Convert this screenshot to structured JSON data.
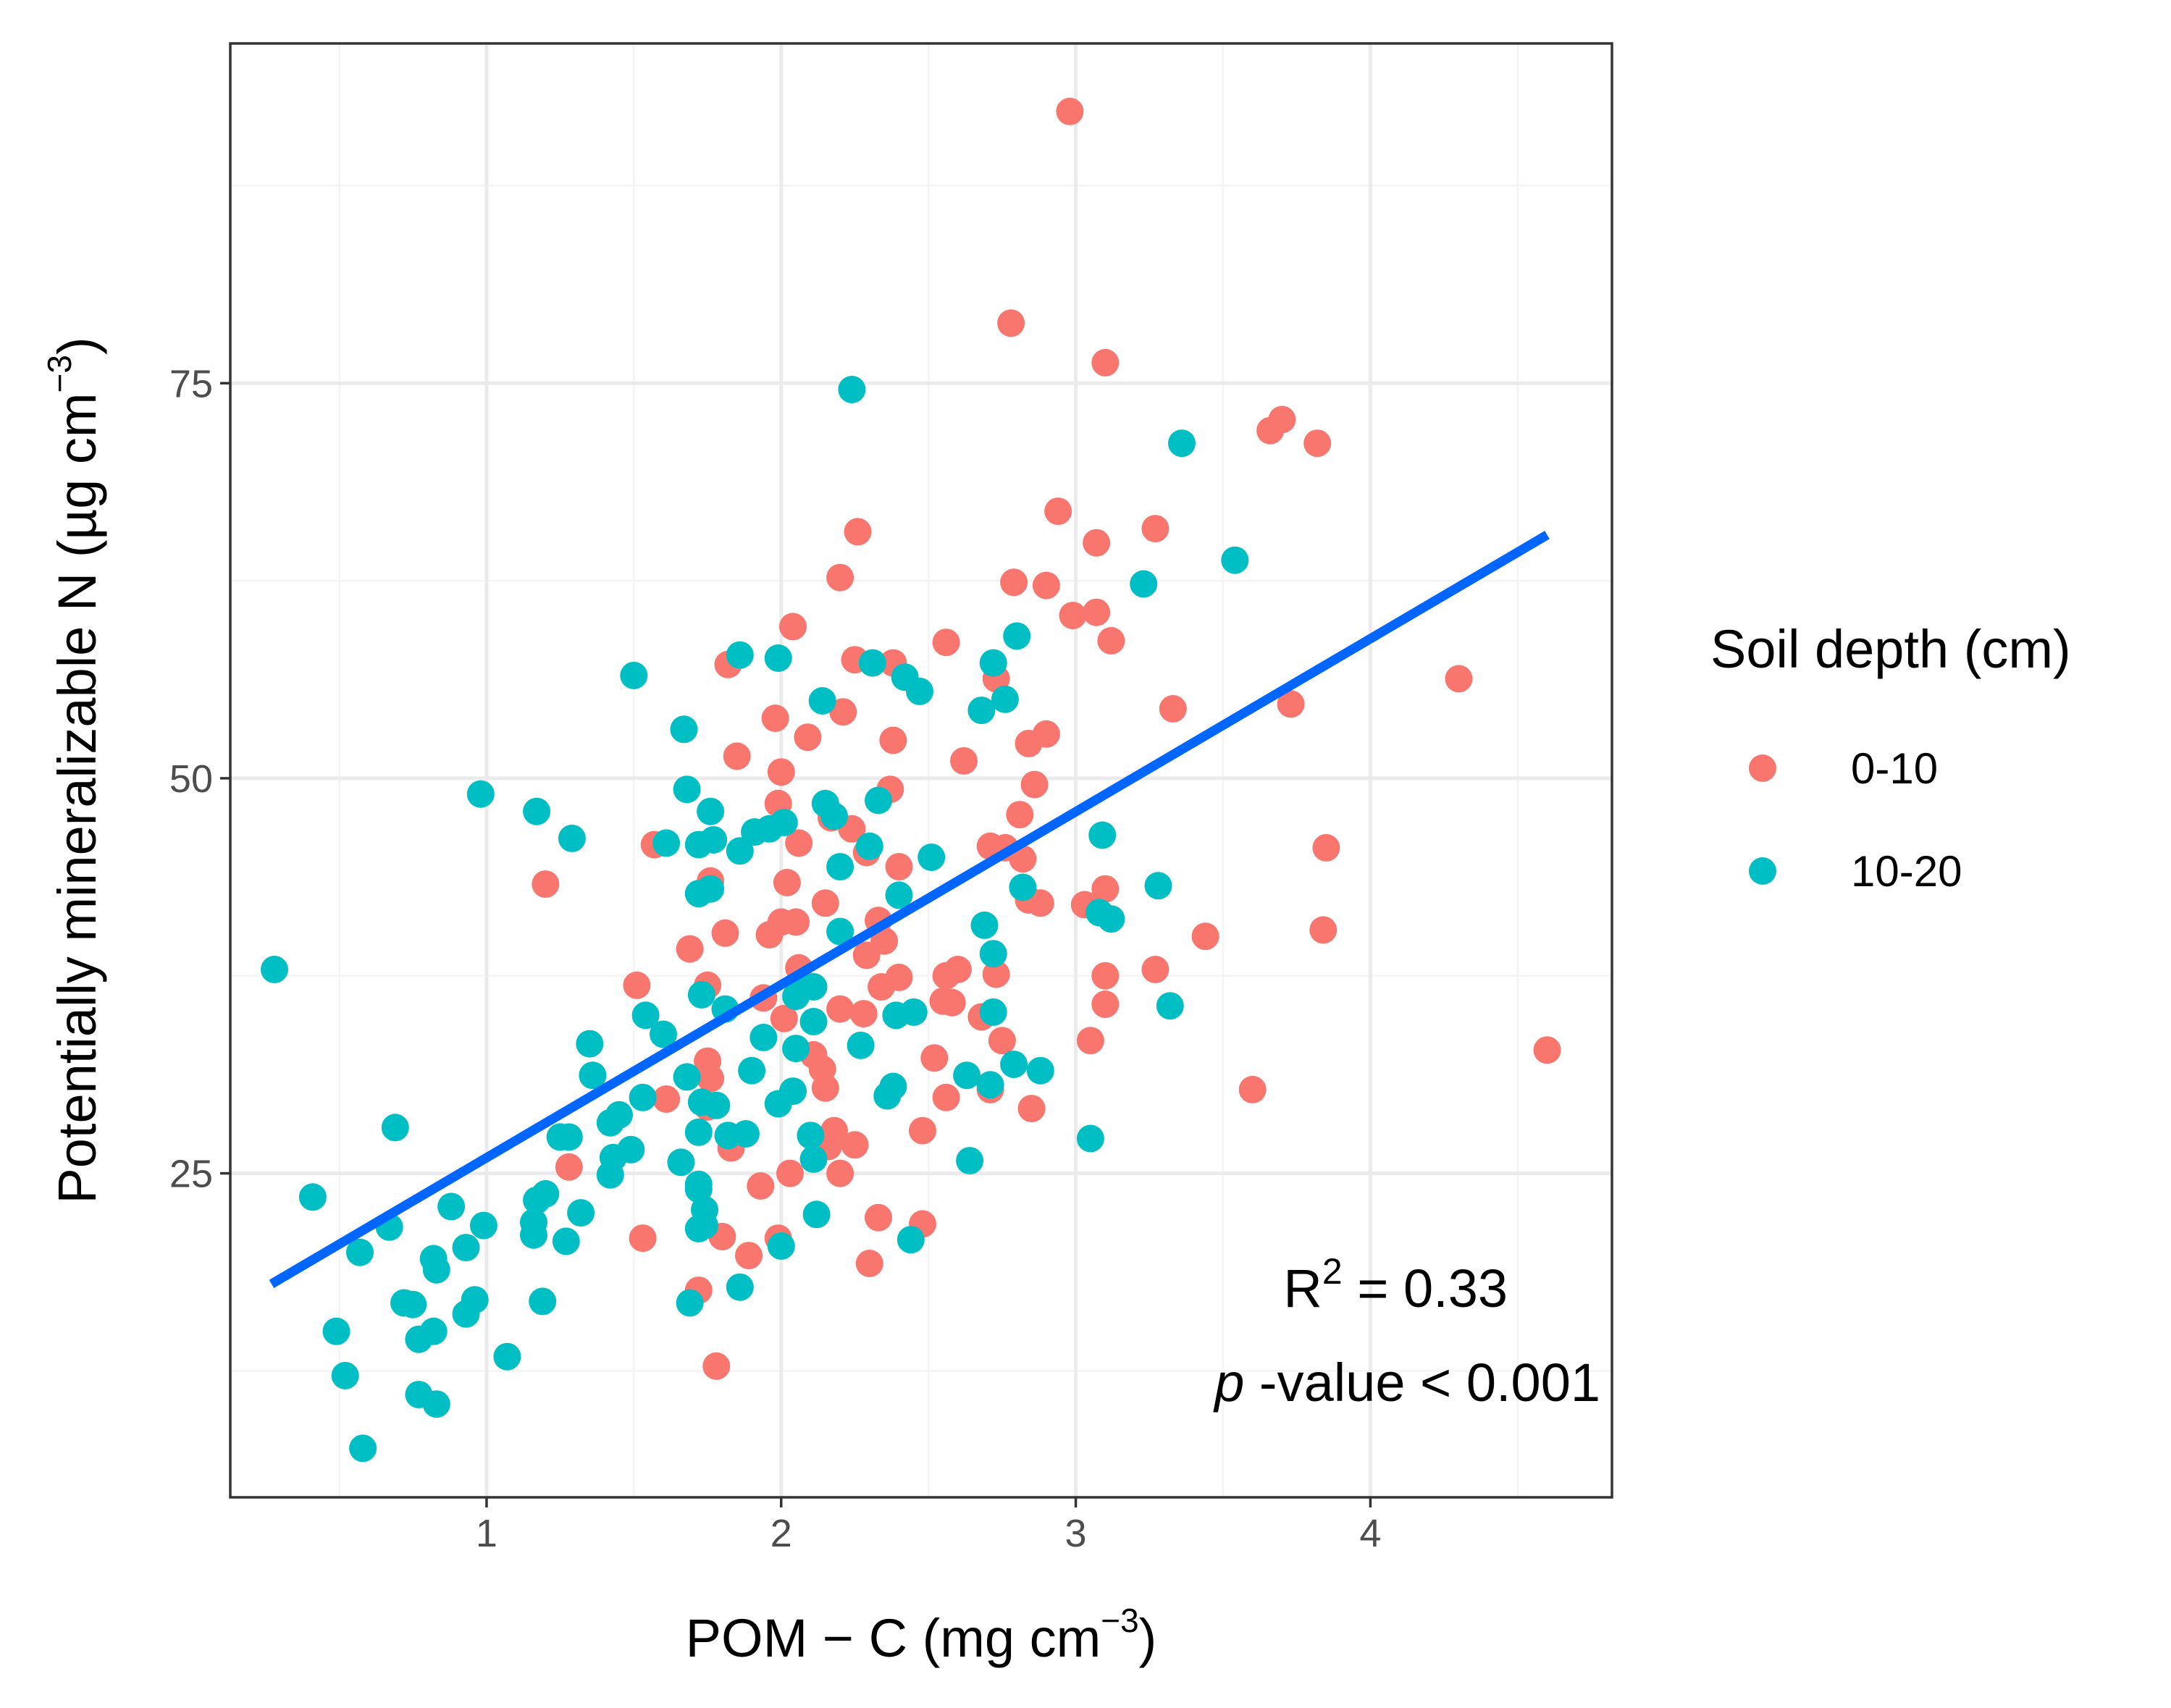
{
  "chart_data": {
    "type": "scatter",
    "title": "",
    "xlabel": {
      "main": "POM − C (mg cm",
      "sup": "−3",
      "close": ")"
    },
    "ylabel": {
      "main": "Potentially mineralizable N (µg cm",
      "sup": "−3",
      "close": ")"
    },
    "xlim": [
      0.13,
      4.82
    ],
    "ylim": [
      4.5,
      96.5
    ],
    "x_ticks": [
      1,
      2,
      3,
      4
    ],
    "y_ticks": [
      25,
      50,
      75
    ],
    "x_tick_labels": [
      "1",
      "2",
      "3",
      "4"
    ],
    "y_tick_labels": [
      "25",
      "50",
      "75"
    ],
    "grid": true,
    "legend": {
      "title": "Soil depth (cm)",
      "position": "right",
      "entries": [
        {
          "label": "0-10",
          "color": "#F8766D"
        },
        {
          "label": "10-20",
          "color": "#00BFC4"
        }
      ]
    },
    "fit_line": {
      "color": "#0066FF",
      "x": [
        0.27,
        4.6
      ],
      "y": [
        18.0,
        65.4
      ]
    },
    "annotations": {
      "r2": {
        "prefix": "R",
        "sup": "2",
        "rest": " = 0.33"
      },
      "pvalue": {
        "italic": "p",
        "rest": " -value < 0.001"
      }
    },
    "series": [
      {
        "name": "0-10",
        "color": "#F8766D",
        "points": [
          [
            2.98,
            92.2
          ],
          [
            2.78,
            78.8
          ],
          [
            3.1,
            76.3
          ],
          [
            3.7,
            72.7
          ],
          [
            3.66,
            72.0
          ],
          [
            3.82,
            71.2
          ],
          [
            2.94,
            66.9
          ],
          [
            2.26,
            65.6
          ],
          [
            3.27,
            65.8
          ],
          [
            3.07,
            64.9
          ],
          [
            2.2,
            62.7
          ],
          [
            2.79,
            62.4
          ],
          [
            2.9,
            62.2
          ],
          [
            2.99,
            60.3
          ],
          [
            3.07,
            60.5
          ],
          [
            2.04,
            59.6
          ],
          [
            3.12,
            58.7
          ],
          [
            2.56,
            58.6
          ],
          [
            2.25,
            57.5
          ],
          [
            2.38,
            57.3
          ],
          [
            1.82,
            57.2
          ],
          [
            2.73,
            56.3
          ],
          [
            4.3,
            56.3
          ],
          [
            3.73,
            54.7
          ],
          [
            3.33,
            54.4
          ],
          [
            2.21,
            54.2
          ],
          [
            1.98,
            53.8
          ],
          [
            2.9,
            52.8
          ],
          [
            2.84,
            52.2
          ],
          [
            2.38,
            52.4
          ],
          [
            2.09,
            52.6
          ],
          [
            1.85,
            51.4
          ],
          [
            2.62,
            51.1
          ],
          [
            2.0,
            50.4
          ],
          [
            1.99,
            48.4
          ],
          [
            2.81,
            47.7
          ],
          [
            2.86,
            49.6
          ],
          [
            2.37,
            49.3
          ],
          [
            2.24,
            46.8
          ],
          [
            2.17,
            47.5
          ],
          [
            1.57,
            45.8
          ],
          [
            2.06,
            45.9
          ],
          [
            2.71,
            45.7
          ],
          [
            2.76,
            45.6
          ],
          [
            2.29,
            45.3
          ],
          [
            3.85,
            45.6
          ],
          [
            2.82,
            44.9
          ],
          [
            2.4,
            44.4
          ],
          [
            1.76,
            43.5
          ],
          [
            2.02,
            43.4
          ],
          [
            3.1,
            43.0
          ],
          [
            1.2,
            43.3
          ],
          [
            2.84,
            42.3
          ],
          [
            2.88,
            42.1
          ],
          [
            3.03,
            42.0
          ],
          [
            2.15,
            42.1
          ],
          [
            2.33,
            41.0
          ],
          [
            2.0,
            40.9
          ],
          [
            2.05,
            40.9
          ],
          [
            1.81,
            40.2
          ],
          [
            1.96,
            40.1
          ],
          [
            3.44,
            40.0
          ],
          [
            3.84,
            40.4
          ],
          [
            2.35,
            39.7
          ],
          [
            2.29,
            38.8
          ],
          [
            1.69,
            39.2
          ],
          [
            2.06,
            38.0
          ],
          [
            2.6,
            37.9
          ],
          [
            2.56,
            37.5
          ],
          [
            2.73,
            37.6
          ],
          [
            3.1,
            37.5
          ],
          [
            3.27,
            37.9
          ],
          [
            2.4,
            37.4
          ],
          [
            2.34,
            36.8
          ],
          [
            1.75,
            36.9
          ],
          [
            1.51,
            36.9
          ],
          [
            1.94,
            36.1
          ],
          [
            2.58,
            35.8
          ],
          [
            2.55,
            35.9
          ],
          [
            3.1,
            35.7
          ],
          [
            2.2,
            35.4
          ],
          [
            2.28,
            35.1
          ],
          [
            2.01,
            34.8
          ],
          [
            2.68,
            34.9
          ],
          [
            2.75,
            33.4
          ],
          [
            3.05,
            33.4
          ],
          [
            4.6,
            32.8
          ],
          [
            2.11,
            32.5
          ],
          [
            2.52,
            32.3
          ],
          [
            1.75,
            32.1
          ],
          [
            2.14,
            31.6
          ],
          [
            1.76,
            31.0
          ],
          [
            2.15,
            30.4
          ],
          [
            2.71,
            30.3
          ],
          [
            3.6,
            30.3
          ],
          [
            1.61,
            29.7
          ],
          [
            2.56,
            29.8
          ],
          [
            1.75,
            29.2
          ],
          [
            2.85,
            29.1
          ],
          [
            2.18,
            27.7
          ],
          [
            2.48,
            27.7
          ],
          [
            1.83,
            26.6
          ],
          [
            2.16,
            26.7
          ],
          [
            2.25,
            26.8
          ],
          [
            1.28,
            25.4
          ],
          [
            2.03,
            25.0
          ],
          [
            2.2,
            25.0
          ],
          [
            1.93,
            24.2
          ],
          [
            2.33,
            22.2
          ],
          [
            2.48,
            21.8
          ],
          [
            1.53,
            20.9
          ],
          [
            1.8,
            21.0
          ],
          [
            1.99,
            20.9
          ],
          [
            1.89,
            19.8
          ],
          [
            2.3,
            19.3
          ],
          [
            1.72,
            17.6
          ],
          [
            1.78,
            12.8
          ]
        ]
      },
      {
        "name": "10-20",
        "color": "#00BFC4",
        "points": [
          [
            2.24,
            74.6
          ],
          [
            3.36,
            71.2
          ],
          [
            3.54,
            63.8
          ],
          [
            3.23,
            62.3
          ],
          [
            2.8,
            59.0
          ],
          [
            1.86,
            57.8
          ],
          [
            1.99,
            57.6
          ],
          [
            2.31,
            57.3
          ],
          [
            2.72,
            57.3
          ],
          [
            2.42,
            56.4
          ],
          [
            1.5,
            56.5
          ],
          [
            2.47,
            55.5
          ],
          [
            2.76,
            55.0
          ],
          [
            2.14,
            54.9
          ],
          [
            2.68,
            54.3
          ],
          [
            1.67,
            53.1
          ],
          [
            1.68,
            49.3
          ],
          [
            0.98,
            49.0
          ],
          [
            2.33,
            48.6
          ],
          [
            2.15,
            48.4
          ],
          [
            1.17,
            47.9
          ],
          [
            1.76,
            47.9
          ],
          [
            2.01,
            47.2
          ],
          [
            1.96,
            46.8
          ],
          [
            2.18,
            47.6
          ],
          [
            1.91,
            46.6
          ],
          [
            3.09,
            46.4
          ],
          [
            1.29,
            46.2
          ],
          [
            1.61,
            45.9
          ],
          [
            1.77,
            46.1
          ],
          [
            1.72,
            45.8
          ],
          [
            2.3,
            45.7
          ],
          [
            1.86,
            45.4
          ],
          [
            2.51,
            45.0
          ],
          [
            2.2,
            44.4
          ],
          [
            2.82,
            43.1
          ],
          [
            3.28,
            43.2
          ],
          [
            1.76,
            43.0
          ],
          [
            1.72,
            42.7
          ],
          [
            2.4,
            42.6
          ],
          [
            3.08,
            41.5
          ],
          [
            3.12,
            41.1
          ],
          [
            2.69,
            40.7
          ],
          [
            2.2,
            40.3
          ],
          [
            2.72,
            38.9
          ],
          [
            0.28,
            37.9
          ],
          [
            1.81,
            35.4
          ],
          [
            1.73,
            36.3
          ],
          [
            2.07,
            36.9
          ],
          [
            2.11,
            36.8
          ],
          [
            2.05,
            36.2
          ],
          [
            2.72,
            35.2
          ],
          [
            3.32,
            35.6
          ],
          [
            2.39,
            35.0
          ],
          [
            2.45,
            35.2
          ],
          [
            1.54,
            35.0
          ],
          [
            2.11,
            34.6
          ],
          [
            1.6,
            33.8
          ],
          [
            1.94,
            33.6
          ],
          [
            1.35,
            33.2
          ],
          [
            2.05,
            32.9
          ],
          [
            2.27,
            33.1
          ],
          [
            2.79,
            31.9
          ],
          [
            2.88,
            31.5
          ],
          [
            1.9,
            31.5
          ],
          [
            1.36,
            31.2
          ],
          [
            2.63,
            31.2
          ],
          [
            1.68,
            31.1
          ],
          [
            2.71,
            30.6
          ],
          [
            2.04,
            30.2
          ],
          [
            2.38,
            30.5
          ],
          [
            2.36,
            29.9
          ],
          [
            1.53,
            29.8
          ],
          [
            1.73,
            29.5
          ],
          [
            1.78,
            29.3
          ],
          [
            1.99,
            29.4
          ],
          [
            1.45,
            28.7
          ],
          [
            1.42,
            28.2
          ],
          [
            1.72,
            27.6
          ],
          [
            1.82,
            27.4
          ],
          [
            1.88,
            27.5
          ],
          [
            2.1,
            27.4
          ],
          [
            0.69,
            27.9
          ],
          [
            1.25,
            27.3
          ],
          [
            1.28,
            27.3
          ],
          [
            3.05,
            27.2
          ],
          [
            1.49,
            26.5
          ],
          [
            1.43,
            26.0
          ],
          [
            2.11,
            25.9
          ],
          [
            2.64,
            25.8
          ],
          [
            1.66,
            25.7
          ],
          [
            1.42,
            24.9
          ],
          [
            1.72,
            24.3
          ],
          [
            1.72,
            24.0
          ],
          [
            0.41,
            23.5
          ],
          [
            1.17,
            23.3
          ],
          [
            1.2,
            23.7
          ],
          [
            0.88,
            22.9
          ],
          [
            1.74,
            22.7
          ],
          [
            1.32,
            22.5
          ],
          [
            2.12,
            22.4
          ],
          [
            0.67,
            21.6
          ],
          [
            1.16,
            21.9
          ],
          [
            1.72,
            21.5
          ],
          [
            1.74,
            21.7
          ],
          [
            0.99,
            21.7
          ],
          [
            1.16,
            21.1
          ],
          [
            1.27,
            20.7
          ],
          [
            2.44,
            20.8
          ],
          [
            0.93,
            20.3
          ],
          [
            2.0,
            20.4
          ],
          [
            0.57,
            20.0
          ],
          [
            0.82,
            19.6
          ],
          [
            0.83,
            18.9
          ],
          [
            1.86,
            17.8
          ],
          [
            1.19,
            16.9
          ],
          [
            0.96,
            17.0
          ],
          [
            0.72,
            16.8
          ],
          [
            0.75,
            16.7
          ],
          [
            1.69,
            16.8
          ],
          [
            0.93,
            16.1
          ],
          [
            0.49,
            15.0
          ],
          [
            0.82,
            15.0
          ],
          [
            0.77,
            14.5
          ],
          [
            1.07,
            13.4
          ],
          [
            0.52,
            12.2
          ],
          [
            0.77,
            11.0
          ],
          [
            0.83,
            10.4
          ],
          [
            0.58,
            7.6
          ]
        ]
      }
    ]
  }
}
